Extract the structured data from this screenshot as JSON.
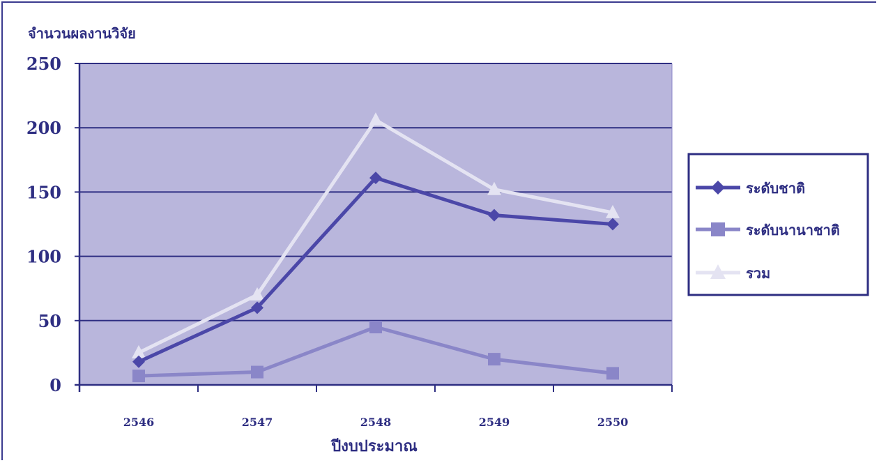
{
  "chart_data": {
    "type": "line",
    "title": "",
    "ylabel": "จำนวนผลงานวิจัย",
    "xlabel": "ปีงบประมาณ",
    "categories": [
      "2546",
      "2547",
      "2548",
      "2549",
      "2550"
    ],
    "ylim": [
      0,
      250
    ],
    "yticks": [
      0,
      50,
      100,
      150,
      200,
      250
    ],
    "grid": true,
    "legend_position": "right",
    "series": [
      {
        "name": "ระดับชาติ",
        "values": [
          18,
          60,
          161,
          132,
          125
        ],
        "color": "#4b47a8",
        "marker": "diamond"
      },
      {
        "name": "ระดับนานาชาติ",
        "values": [
          7,
          10,
          45,
          20,
          9
        ],
        "color": "#8a86c8",
        "marker": "square"
      },
      {
        "name": "รวม",
        "values": [
          25,
          70,
          206,
          152,
          134
        ],
        "color": "#e4e3f2",
        "marker": "triangle"
      }
    ],
    "colors": {
      "plot_bg": "#b9b6dc",
      "grid": "#2e2e82",
      "axis": "#2e2e82",
      "text": "#2e2e82"
    }
  }
}
